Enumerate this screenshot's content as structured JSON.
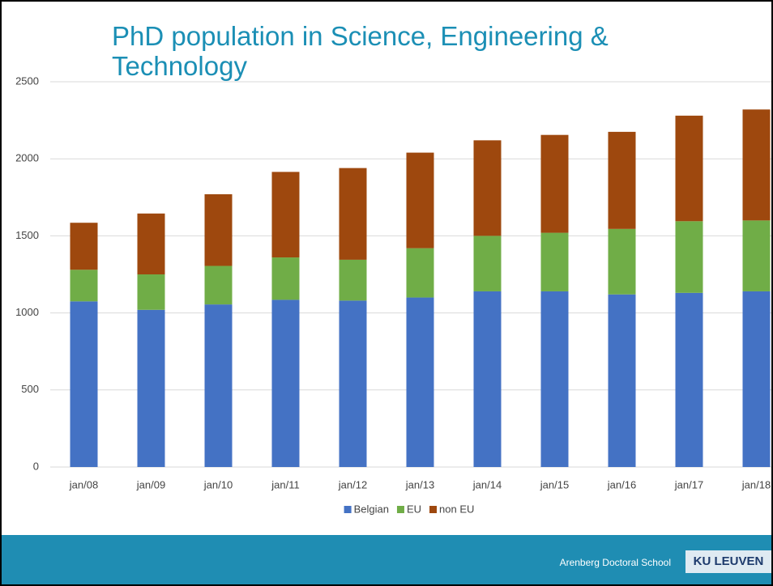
{
  "chart_data": {
    "type": "stacked_bar",
    "title": "PhD population in Science, Engineering & Technology",
    "categories": [
      "jan/08",
      "jan/09",
      "jan/10",
      "jan/11",
      "jan/12",
      "jan/13",
      "jan/14",
      "jan/15",
      "jan/16",
      "jan/17",
      "jan/18"
    ],
    "series": [
      {
        "name": "Belgian",
        "color": "#4472c4",
        "values": [
          1075,
          1020,
          1055,
          1085,
          1080,
          1100,
          1140,
          1140,
          1120,
          1130,
          1140
        ]
      },
      {
        "name": "EU",
        "color": "#70ad47",
        "values": [
          205,
          230,
          250,
          275,
          265,
          320,
          360,
          380,
          425,
          465,
          460
        ]
      },
      {
        "name": "non EU",
        "color": "#9e480e",
        "values": [
          305,
          395,
          465,
          555,
          595,
          620,
          620,
          635,
          630,
          685,
          720
        ]
      }
    ],
    "ylim": [
      0,
      2500
    ],
    "yticks": [
      0,
      500,
      1000,
      1500,
      2000,
      2500
    ],
    "grid": true,
    "legend": "bottom"
  },
  "footer": {
    "text": "Arenberg Doctoral School",
    "logo": "KU LEUVEN"
  }
}
